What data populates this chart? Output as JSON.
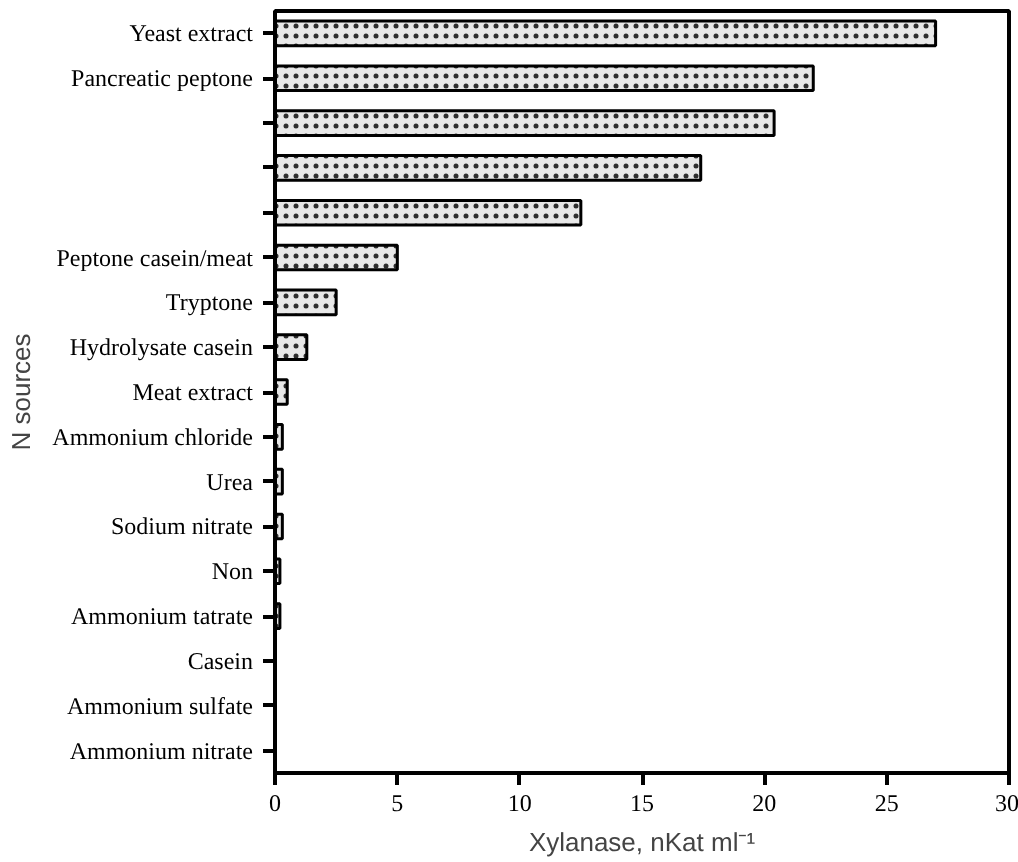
{
  "chart_data": {
    "type": "bar",
    "orientation": "horizontal",
    "ylabel": "N sources",
    "xlabel": "Xylanase, nKat ml⁻¹",
    "categories": [
      "Yeast extract",
      "Pancreatic peptone",
      null,
      null,
      null,
      "Peptone casein/meat",
      "Tryptone",
      "Hydrolysate casein",
      "Meat extract",
      "Ammonium chloride",
      "Urea",
      "Sodium nitrate",
      "Non",
      "Ammonium tatrate",
      "Casein",
      "Ammonium sulfate",
      "Ammonium nitrate"
    ],
    "values": [
      27.0,
      22.0,
      20.4,
      17.4,
      12.5,
      5.0,
      2.5,
      1.3,
      0.5,
      0.3,
      0.3,
      0.3,
      0.2,
      0.2,
      0,
      0,
      0
    ],
    "color": "#e8e8e8",
    "xlim": [
      0,
      30
    ],
    "xticks": [
      0,
      5,
      10,
      15,
      20,
      25,
      30
    ],
    "grid": false
  }
}
